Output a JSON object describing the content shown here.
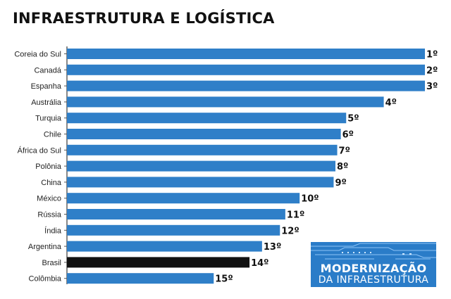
{
  "chart_data": {
    "type": "bar",
    "orientation": "horizontal",
    "title": "INFRAESTRUTURA E LOGÍSTICA",
    "categories": [
      "Coreia do Sul",
      "Canadá",
      "Espanha",
      "Austrália",
      "Turquia",
      "Chile",
      "África do Sul",
      "Polônia",
      "China",
      "México",
      "Rússia",
      "Índia",
      "Argentina",
      "Brasil",
      "Colômbia"
    ],
    "values": [
      100,
      100,
      100,
      88.5,
      78,
      76.5,
      75.5,
      75,
      74.5,
      65,
      61,
      59.5,
      54.5,
      51,
      41
    ],
    "data_labels": [
      "1º",
      "2º",
      "3º",
      "4º",
      "5º",
      "6º",
      "7º",
      "8º",
      "9º",
      "10º",
      "11º",
      "12º",
      "13º",
      "14º",
      "15º"
    ],
    "highlight": "Brasil",
    "xlim": [
      0,
      100
    ],
    "grid": false,
    "colors": {
      "bar": "#2f7fc8",
      "highlight": "#111111"
    }
  },
  "logo": {
    "line1": "MODERNIZAÇÃO",
    "line2": "DA INFRAESTRUTURA",
    "background": "#2a7cc8"
  }
}
